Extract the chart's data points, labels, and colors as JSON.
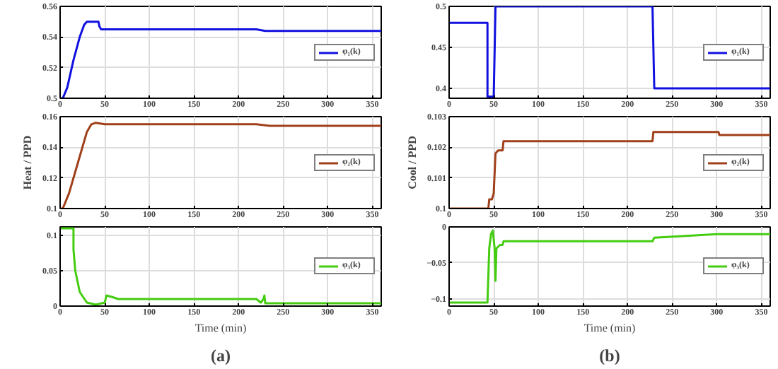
{
  "chart_data": [
    {
      "type": "line",
      "xlim": [
        0,
        360
      ],
      "xticks": [
        0,
        50,
        100,
        150,
        200,
        250,
        300,
        350
      ],
      "ylim": [
        0.5,
        0.56
      ],
      "yticks": [
        0.5,
        0.52,
        0.54,
        0.56
      ],
      "grid": true,
      "legend": "right",
      "series": [
        {
          "name": "φ₁(k)",
          "color": "#1010e0",
          "x": [
            0,
            3,
            8,
            15,
            22,
            27,
            30,
            43,
            44,
            46,
            220,
            230,
            360
          ],
          "values": [
            0.5,
            0.5,
            0.507,
            0.525,
            0.54,
            0.548,
            0.55,
            0.55,
            0.547,
            0.545,
            0.545,
            0.544,
            0.544
          ]
        }
      ]
    },
    {
      "type": "line",
      "xlim": [
        0,
        360
      ],
      "xticks": [
        0,
        50,
        100,
        150,
        200,
        250,
        300,
        350
      ],
      "ylim": [
        0.388,
        0.5
      ],
      "yticks": [
        0.4,
        0.45,
        0.5
      ],
      "grid": true,
      "legend": "right",
      "series": [
        {
          "name": "φ₁(k)",
          "color": "#1010e0",
          "x": [
            0,
            43,
            43,
            50,
            52,
            228,
            230,
            360
          ],
          "values": [
            0.48,
            0.48,
            0.39,
            0.39,
            0.5,
            0.5,
            0.4,
            0.4
          ]
        }
      ]
    },
    {
      "type": "line",
      "ylabel": "Heat / PPD",
      "xlim": [
        0,
        360
      ],
      "xticks": [
        0,
        50,
        100,
        150,
        200,
        250,
        300,
        350
      ],
      "ylim": [
        0.1,
        0.16
      ],
      "yticks": [
        0.1,
        0.12,
        0.14,
        0.16
      ],
      "grid": true,
      "legend": "right",
      "series": [
        {
          "name": "φ₂(k)",
          "color": "#a0401a",
          "x": [
            0,
            3,
            10,
            20,
            30,
            35,
            40,
            50,
            220,
            235,
            360
          ],
          "values": [
            0.1,
            0.1,
            0.11,
            0.13,
            0.15,
            0.155,
            0.156,
            0.155,
            0.155,
            0.154,
            0.154
          ]
        }
      ]
    },
    {
      "type": "line",
      "ylabel": "Cool / PPD",
      "xlim": [
        0,
        360
      ],
      "xticks": [
        0,
        50,
        100,
        150,
        200,
        250,
        300,
        350
      ],
      "ylim": [
        0.1,
        0.103
      ],
      "yticks": [
        0.1,
        0.101,
        0.102,
        0.103
      ],
      "grid": true,
      "legend": "right",
      "series": [
        {
          "name": "φ₂(k)",
          "color": "#a0401a",
          "x": [
            0,
            44,
            45,
            48,
            50,
            52,
            55,
            60,
            61,
            228,
            229,
            302,
            303,
            360
          ],
          "values": [
            0.1,
            0.1,
            0.1003,
            0.1003,
            0.1005,
            0.1018,
            0.1019,
            0.1019,
            0.1022,
            0.1022,
            0.1025,
            0.1025,
            0.1024,
            0.1024
          ]
        }
      ]
    },
    {
      "type": "line",
      "xlabel": "Time (min)",
      "annotations": [
        "(a)"
      ],
      "xlim": [
        0,
        360
      ],
      "xticks": [
        0,
        50,
        100,
        150,
        200,
        250,
        300,
        350
      ],
      "ylim": [
        0,
        0.112
      ],
      "yticks": [
        0,
        0.05,
        0.1
      ],
      "grid": true,
      "legend": "right",
      "series": [
        {
          "name": "φ₃(k)",
          "color": "#44cc10",
          "x": [
            0,
            15,
            15,
            17,
            22,
            30,
            40,
            50,
            52,
            58,
            65,
            220,
            225,
            228,
            229,
            230,
            360
          ],
          "values": [
            0.11,
            0.11,
            0.08,
            0.05,
            0.02,
            0.005,
            0.002,
            0.005,
            0.015,
            0.013,
            0.01,
            0.01,
            0.005,
            0.01,
            0.015,
            0.004,
            0.004
          ]
        }
      ]
    },
    {
      "type": "line",
      "xlabel": "Time (min)",
      "annotations": [
        "(b)"
      ],
      "xlim": [
        0,
        360
      ],
      "xticks": [
        0,
        50,
        100,
        150,
        200,
        250,
        300,
        350
      ],
      "ylim": [
        -0.11,
        0
      ],
      "yticks": [
        -0.1,
        -0.05,
        0
      ],
      "grid": true,
      "legend": "right",
      "series": [
        {
          "name": "φ₃(k)",
          "color": "#44cc10",
          "x": [
            0,
            43,
            45,
            47,
            49,
            51,
            52,
            53,
            57,
            60,
            61,
            228,
            230,
            300,
            360
          ],
          "values": [
            -0.105,
            -0.105,
            -0.03,
            -0.01,
            -0.005,
            -0.03,
            -0.075,
            -0.03,
            -0.025,
            -0.025,
            -0.02,
            -0.02,
            -0.015,
            -0.01,
            -0.01
          ]
        }
      ]
    }
  ]
}
